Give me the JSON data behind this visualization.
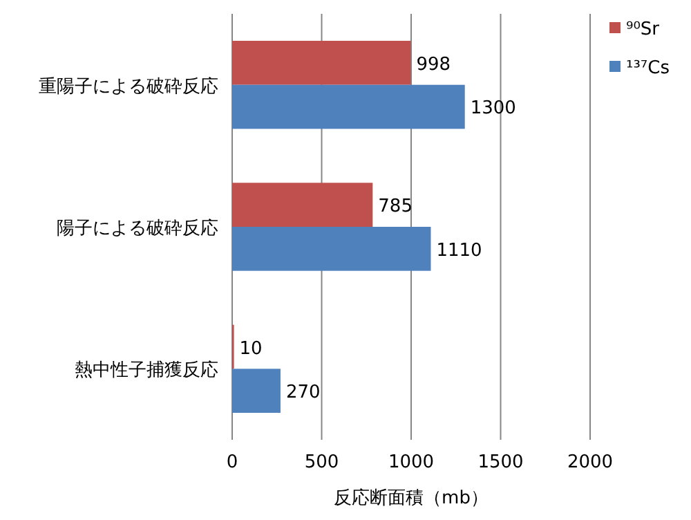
{
  "chart_data": {
    "type": "bar",
    "orientation": "horizontal",
    "categories": [
      "重陽子による破砕反応",
      "陽子による破砕反応",
      "熱中性子捕獲反応"
    ],
    "series": [
      {
        "name": "⁹⁰Sr",
        "color": "#c0504d",
        "values": [
          998,
          785,
          10
        ]
      },
      {
        "name": "¹³⁷Cs",
        "color": "#4f81bd",
        "values": [
          1300,
          1110,
          270
        ]
      }
    ],
    "xlim": [
      0,
      2000
    ],
    "xticks": [
      0,
      500,
      1000,
      1500,
      2000
    ],
    "xlabel": "反応断面積（mb）",
    "grid": "x",
    "legend": "right",
    "data_labels": true
  }
}
